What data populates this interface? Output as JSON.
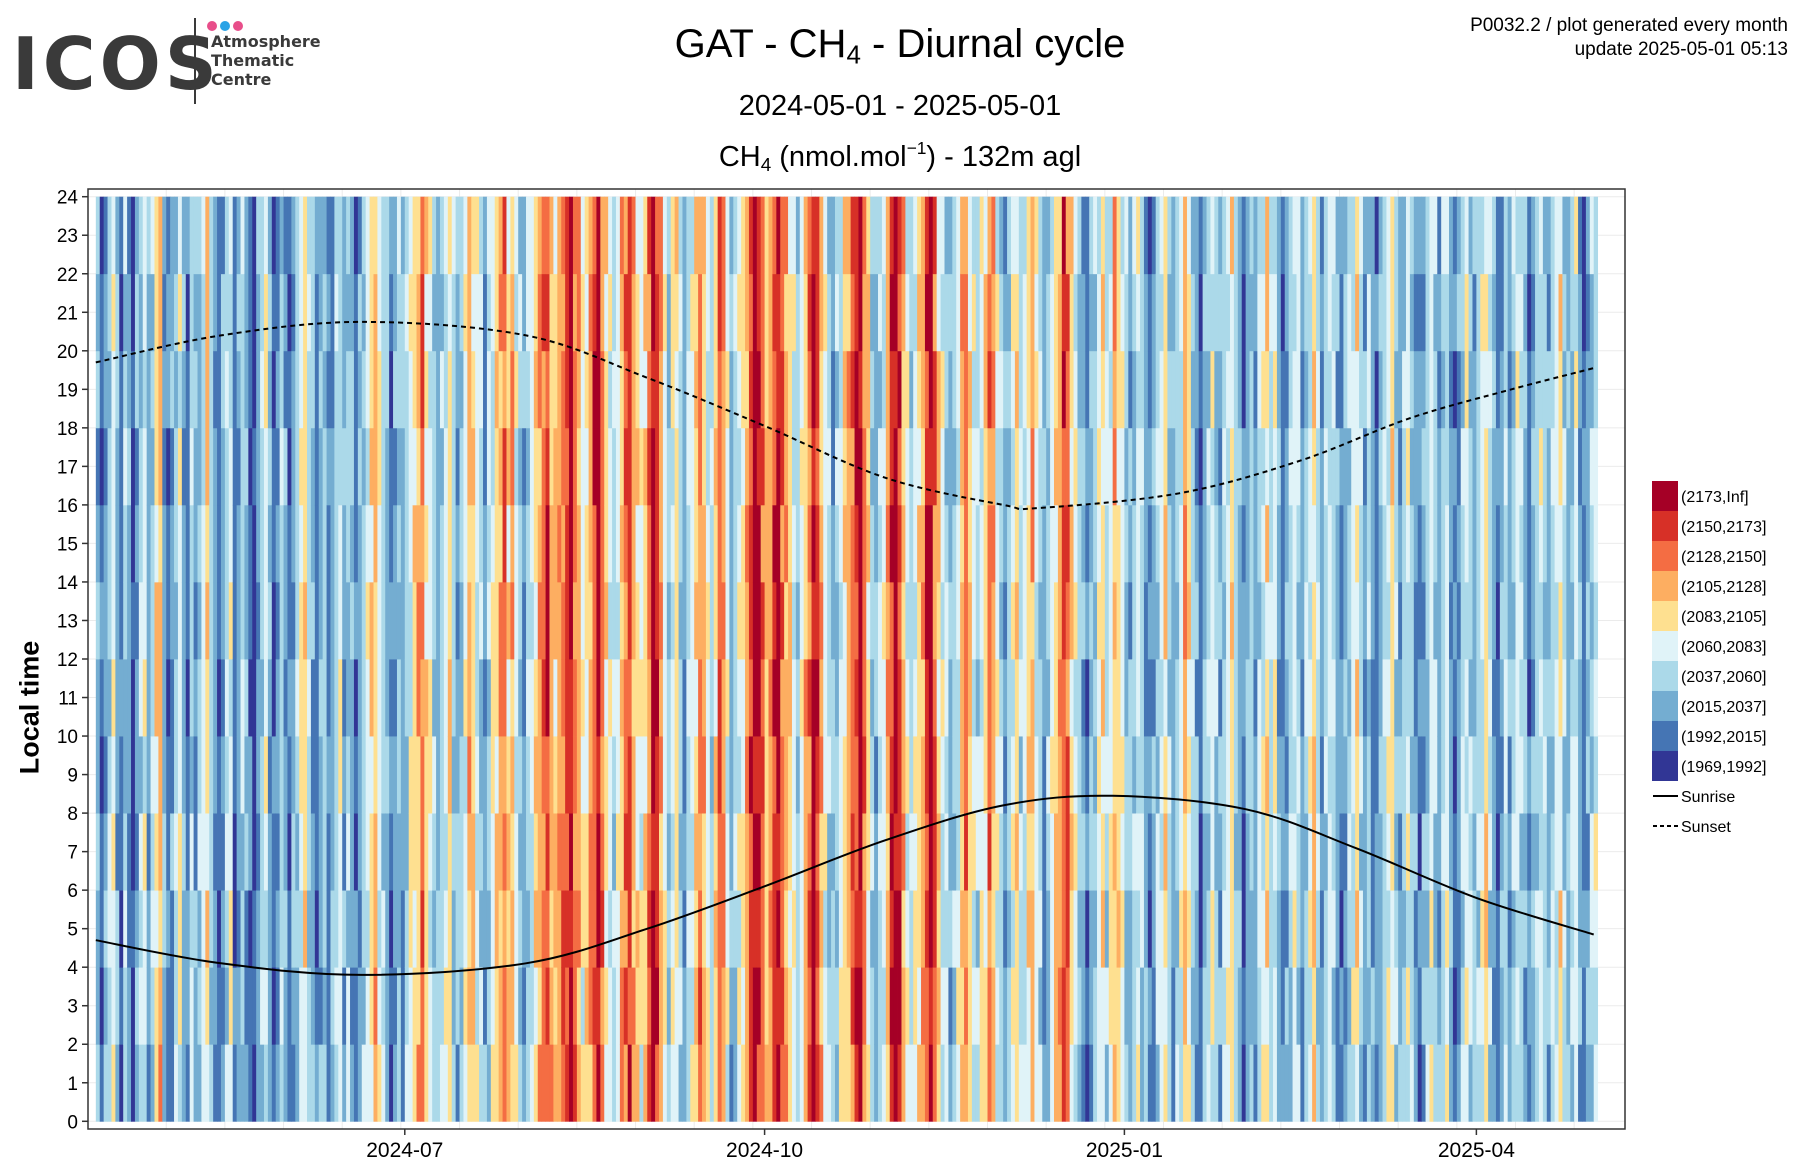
{
  "header": {
    "logo_text": "ICOS",
    "logo_lines": [
      "Atmosphere",
      "Thematic",
      "Centre"
    ],
    "title_prefix": "GAT - CH",
    "title_sub": "4",
    "title_suffix": " - Diurnal cycle",
    "subtitle": "2024-05-01 - 2025-05-01",
    "unit_prefix": "CH",
    "unit_sub": "4",
    "unit_mid": " (nmol.mol",
    "unit_sup": "−1",
    "unit_suffix": ") - 132m agl",
    "meta_line1": "P0032.2 / plot generated every month",
    "meta_line2": "update  2025-05-01 05:13"
  },
  "colors": {
    "logo_dot1": "#e84e8a",
    "logo_dot2": "#2aa3e6",
    "logo_dot3": "#e84e8a"
  },
  "chart_data": {
    "type": "heatmap",
    "ylabel": "Local time",
    "x_ticks": [
      "2024-07",
      "2024-10",
      "2025-01",
      "2025-04"
    ],
    "x_tick_dates": [
      "2024-07-01",
      "2024-10-01",
      "2025-01-01",
      "2025-04-01"
    ],
    "x_range": [
      "2024-04-11",
      "2025-05-09"
    ],
    "data_range": [
      "2024-04-13",
      "2025-05-01"
    ],
    "y_range": [
      -0.2,
      24.2
    ],
    "y_ticks": [
      0,
      1,
      2,
      3,
      4,
      5,
      6,
      7,
      8,
      9,
      10,
      11,
      12,
      13,
      14,
      15,
      16,
      17,
      18,
      19,
      20,
      21,
      22,
      23,
      24
    ],
    "grid": true,
    "legend_position": "right",
    "legend": [
      {
        "label": "(2173,Inf]",
        "color": "#a50026"
      },
      {
        "label": "(2150,2173]",
        "color": "#d73027"
      },
      {
        "label": "(2128,2150]",
        "color": "#f46d43"
      },
      {
        "label": "(2105,2128]",
        "color": "#fdae61"
      },
      {
        "label": "(2083,2105]",
        "color": "#fee090"
      },
      {
        "label": "(2060,2083]",
        "color": "#e0f3f8"
      },
      {
        "label": "(2037,2060]",
        "color": "#abd9e9"
      },
      {
        "label": "(2015,2037]",
        "color": "#74add1"
      },
      {
        "label": "(1992,2015]",
        "color": "#4575b4"
      },
      {
        "label": "(1969,1992]",
        "color": "#313695"
      }
    ],
    "line_legend": [
      {
        "label": "Sunrise",
        "style": "solid"
      },
      {
        "label": "Sunset",
        "style": "dashed"
      }
    ],
    "sunrise": {
      "dates": [
        "2024-04-13",
        "2024-05-15",
        "2024-06-20",
        "2024-08-01",
        "2024-09-01",
        "2024-10-01",
        "2024-11-01",
        "2024-12-01",
        "2024-12-29",
        "2025-02-01",
        "2025-03-01",
        "2025-04-01",
        "2025-05-01"
      ],
      "hours": [
        4.7,
        4.1,
        3.8,
        4.1,
        5.0,
        6.1,
        7.3,
        8.2,
        8.45,
        8.1,
        7.1,
        5.8,
        4.85
      ]
    },
    "sunset": {
      "dates": [
        "2024-04-13",
        "2024-05-15",
        "2024-06-20",
        "2024-08-01",
        "2024-09-01",
        "2024-10-01",
        "2024-11-01",
        "2024-12-01",
        "2024-12-10",
        "2025-01-15",
        "2025-02-15",
        "2025-03-15",
        "2025-04-10",
        "2025-05-01"
      ],
      "hours": [
        19.7,
        20.4,
        20.75,
        20.4,
        19.3,
        18.05,
        16.7,
        16.0,
        15.92,
        16.3,
        17.15,
        18.25,
        19.0,
        19.55
      ]
    },
    "daily_class_sequence": [
      7,
      8,
      7,
      6,
      5,
      7,
      8,
      6,
      7,
      9,
      7,
      6,
      5,
      7,
      6,
      4,
      3,
      7,
      8,
      7,
      6,
      5,
      7,
      8,
      6,
      7,
      6,
      5,
      4,
      6,
      7,
      8,
      7,
      6,
      5,
      8,
      7,
      6,
      7,
      8,
      9,
      7,
      6,
      5,
      7,
      8,
      7,
      6,
      7,
      8,
      7,
      6,
      5,
      4,
      6,
      7,
      8,
      7,
      6,
      8,
      7,
      6,
      5,
      7,
      6,
      7,
      8,
      7,
      6,
      5,
      4,
      3,
      5,
      6,
      7,
      8,
      7,
      6,
      7,
      6,
      5,
      4,
      3,
      2,
      4,
      5,
      6,
      7,
      6,
      5,
      4,
      6,
      7,
      6,
      5,
      3,
      4,
      5,
      6,
      7,
      6,
      5,
      4,
      3,
      2,
      4,
      3,
      5,
      6,
      7,
      6,
      5,
      4,
      3,
      2,
      1,
      3,
      4,
      3,
      2,
      1,
      0,
      2,
      3,
      5,
      4,
      3,
      1,
      0,
      2,
      4,
      5,
      6,
      5,
      3,
      2,
      1,
      3,
      4,
      5,
      4,
      2,
      0,
      1,
      3,
      5,
      6,
      5,
      4,
      6,
      7,
      6,
      5,
      4,
      2,
      3,
      5,
      6,
      4,
      2,
      3,
      5,
      7,
      6,
      5,
      4,
      3,
      1,
      0,
      1,
      2,
      4,
      3,
      1,
      0,
      2,
      3,
      4,
      5,
      6,
      5,
      3,
      2,
      0,
      1,
      3,
      5,
      6,
      7,
      6,
      5,
      4,
      3,
      2,
      1,
      0,
      2,
      4,
      6,
      7,
      6,
      5,
      3,
      1,
      0,
      1,
      3,
      5,
      6,
      5,
      4,
      3,
      1,
      0,
      2,
      4,
      5,
      6,
      7,
      6,
      5,
      3,
      2,
      4,
      5,
      6,
      5,
      4,
      2,
      3,
      5,
      6,
      7,
      6,
      5,
      4,
      6,
      5,
      4,
      3,
      5,
      6,
      7,
      6,
      5,
      4,
      3,
      1,
      2,
      4,
      5,
      6,
      7,
      8,
      7,
      6,
      5,
      4,
      6,
      5,
      3,
      4,
      5,
      6,
      7,
      6,
      5,
      6,
      7,
      8,
      7,
      6,
      5,
      4,
      6,
      7,
      6,
      5,
      3,
      4,
      6,
      7,
      8,
      7,
      6,
      5,
      6,
      7,
      6,
      5,
      4,
      6,
      7,
      8,
      7,
      6,
      7,
      6,
      5,
      4,
      6,
      5,
      7,
      8,
      7,
      6,
      5,
      6,
      7,
      6,
      5,
      4,
      6,
      7,
      6,
      5,
      6,
      7,
      8,
      7,
      6,
      5,
      4,
      6,
      7,
      6,
      7,
      8,
      7,
      6,
      5,
      4,
      6,
      7,
      6,
      5,
      6,
      7,
      8,
      7,
      6,
      5,
      6,
      7,
      6,
      5,
      7,
      8,
      7,
      6,
      5,
      6,
      7,
      6,
      5,
      4,
      6,
      7,
      8,
      7,
      6,
      7,
      6,
      5,
      6,
      7,
      8,
      7,
      6,
      5,
      6,
      7,
      6,
      5,
      4,
      6,
      7,
      6,
      5,
      7,
      8,
      7,
      6,
      5,
      6,
      7,
      6
    ]
  }
}
